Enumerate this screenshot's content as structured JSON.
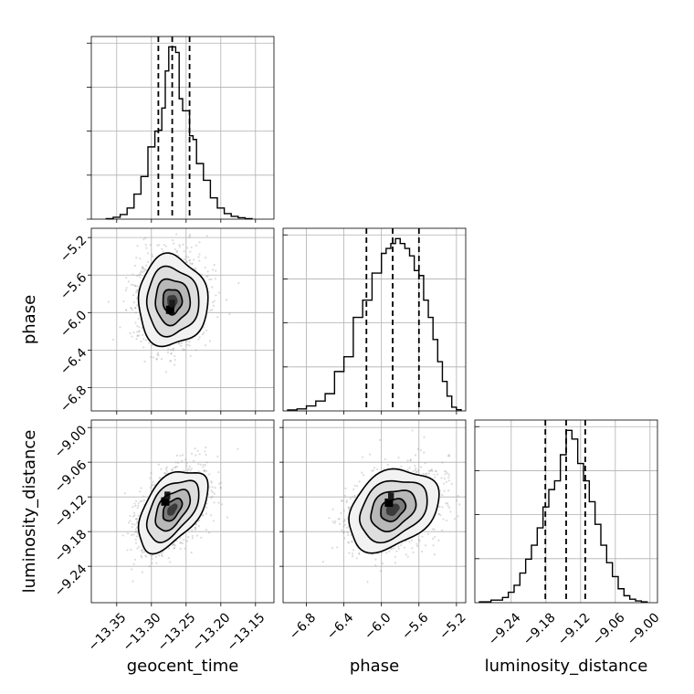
{
  "chart_data": {
    "type": "corner",
    "parameters": [
      {
        "name": "geocent_time",
        "label": "geocent_time",
        "range": [
          -13.38,
          -13.13
        ],
        "ticks": [
          -13.35,
          -13.3,
          -13.25,
          -13.2,
          -13.15
        ],
        "tick_labels": [
          "−13.35",
          "−13.30",
          "−13.25",
          "−13.20",
          "−13.15"
        ],
        "quantiles": [
          -13.29,
          -13.27,
          -13.245
        ],
        "histogram": {
          "bin_edges": [
            -13.365,
            -13.355,
            -13.345,
            -13.335,
            -13.325,
            -13.315,
            -13.305,
            -13.295,
            -13.29,
            -13.285,
            -13.28,
            -13.275,
            -13.27,
            -13.265,
            -13.26,
            -13.255,
            -13.25,
            -13.245,
            -13.24,
            -13.235,
            -13.225,
            -13.215,
            -13.205,
            -13.195,
            -13.185,
            -13.175,
            -13.165,
            -13.155
          ],
          "counts": [
            0.5,
            2,
            5,
            12,
            27,
            46,
            78,
            95,
            96,
            120,
            160,
            186,
            186,
            180,
            130,
            117,
            117,
            90,
            86,
            60,
            42,
            23,
            12,
            6,
            3,
            1.5,
            0.5
          ]
        }
      },
      {
        "name": "phase",
        "label": "phase",
        "range": [
          -7.0,
          -5.15
        ],
        "ticks": [
          -6.8,
          -6.4,
          -6.0,
          -5.6,
          -5.2
        ],
        "tick_labels": [
          "−6.8",
          "−6.4",
          "−6.0",
          "−5.6",
          "−5.2"
        ],
        "quantiles": [
          -6.16,
          -5.88,
          -5.6
        ],
        "histogram": {
          "bin_edges": [
            -7.0,
            -6.9,
            -6.8,
            -6.7,
            -6.6,
            -6.5,
            -6.4,
            -6.3,
            -6.2,
            -6.1,
            -6.0,
            -5.95,
            -5.9,
            -5.85,
            -5.8,
            -5.75,
            -5.7,
            -5.65,
            -5.6,
            -5.55,
            -5.5,
            -5.45,
            -5.4,
            -5.35,
            -5.3,
            -5.25,
            -5.2,
            -5.15
          ],
          "counts": [
            0.4,
            0.8,
            2,
            4,
            7,
            16,
            22,
            38,
            45,
            56,
            64,
            66,
            68,
            70,
            68,
            66,
            63,
            57,
            55,
            45,
            38,
            29,
            20,
            12,
            6,
            1.5,
            0.5
          ]
        }
      },
      {
        "name": "luminosity_distance",
        "label": "luminosity_distance",
        "range": [
          -9.295,
          -8.995
        ],
        "ticks": [
          -9.24,
          -9.18,
          -9.12,
          -9.06,
          -9.0
        ],
        "tick_labels": [
          "−9.24",
          "−9.18",
          "−9.12",
          "−9.06",
          "−9.00"
        ],
        "quantiles": [
          -9.181,
          -9.145,
          -9.112
        ],
        "histogram": {
          "bin_edges": [
            -9.295,
            -9.275,
            -9.255,
            -9.245,
            -9.235,
            -9.225,
            -9.215,
            -9.205,
            -9.195,
            -9.185,
            -9.175,
            -9.165,
            -9.155,
            -9.145,
            -9.135,
            -9.125,
            -9.115,
            -9.105,
            -9.095,
            -9.085,
            -9.075,
            -9.065,
            -9.055,
            -9.045,
            -9.035,
            -9.025,
            -9.015,
            -9.005
          ],
          "counts": [
            0.5,
            1.5,
            3,
            6,
            10,
            17,
            25,
            33,
            43,
            55,
            65,
            70,
            85,
            99,
            94,
            80,
            70,
            58,
            45,
            33,
            23,
            15,
            8,
            4,
            2,
            1,
            0.5
          ]
        }
      }
    ],
    "pairs": [
      {
        "x": "geocent_time",
        "y": "phase",
        "mean": [
          -13.27,
          -5.88
        ],
        "std": [
          0.025,
          0.24
        ],
        "corr": 0.0,
        "hist_peak": [
          -13.273,
          -5.97
        ]
      },
      {
        "x": "geocent_time",
        "y": "luminosity_distance",
        "mean": [
          -13.27,
          -9.142
        ],
        "std": [
          0.025,
          0.035
        ],
        "corr": 0.5,
        "hist_peak": [
          -13.28,
          -9.128
        ]
      },
      {
        "x": "phase",
        "y": "luminosity_distance",
        "mean": [
          -5.88,
          -9.142
        ],
        "std": [
          0.24,
          0.035
        ],
        "corr": 0.3,
        "hist_peak": [
          -5.92,
          -9.13
        ]
      }
    ],
    "contour_levels": [
      "0.5-sigma",
      "1-sigma",
      "1.5-sigma",
      "2-sigma"
    ],
    "grid": true,
    "colors": {
      "line": "#000000",
      "points": "#9a9a9a",
      "grid": "#b0b0b0"
    }
  }
}
